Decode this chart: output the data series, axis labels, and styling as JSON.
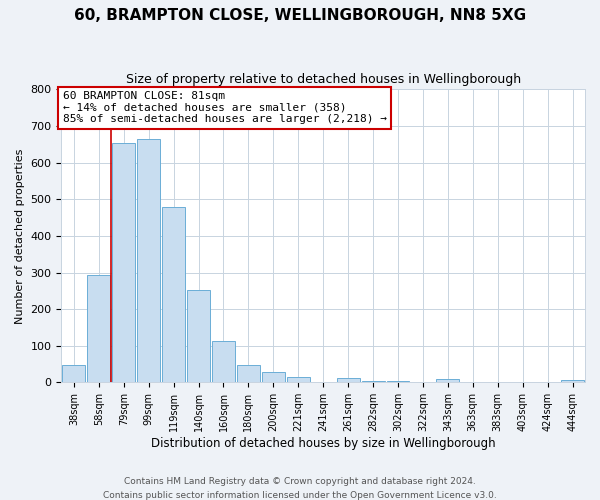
{
  "title": "60, BRAMPTON CLOSE, WELLINGBOROUGH, NN8 5XG",
  "subtitle": "Size of property relative to detached houses in Wellingborough",
  "xlabel": "Distribution of detached houses by size in Wellingborough",
  "ylabel": "Number of detached properties",
  "bar_labels": [
    "38sqm",
    "58sqm",
    "79sqm",
    "99sqm",
    "119sqm",
    "140sqm",
    "160sqm",
    "180sqm",
    "200sqm",
    "221sqm",
    "241sqm",
    "261sqm",
    "282sqm",
    "302sqm",
    "322sqm",
    "343sqm",
    "363sqm",
    "383sqm",
    "403sqm",
    "424sqm",
    "444sqm"
  ],
  "bar_values": [
    48,
    293,
    655,
    665,
    478,
    253,
    113,
    48,
    27,
    14,
    0,
    13,
    5,
    4,
    0,
    8,
    0,
    0,
    0,
    0,
    7
  ],
  "bar_color": "#c8ddf0",
  "bar_edge_color": "#6baed6",
  "highlight_color": "#cc0000",
  "annotation_title": "60 BRAMPTON CLOSE: 81sqm",
  "annotation_line1": "← 14% of detached houses are smaller (358)",
  "annotation_line2": "85% of semi-detached houses are larger (2,218) →",
  "annotation_box_color": "#ffffff",
  "annotation_box_edge": "#cc0000",
  "ylim": [
    0,
    800
  ],
  "yticks": [
    0,
    100,
    200,
    300,
    400,
    500,
    600,
    700,
    800
  ],
  "footer1": "Contains HM Land Registry data © Crown copyright and database right 2024.",
  "footer2": "Contains public sector information licensed under the Open Government Licence v3.0.",
  "bg_color": "#eef2f7",
  "plot_bg_color": "#ffffff",
  "grid_color": "#c8d4e0"
}
